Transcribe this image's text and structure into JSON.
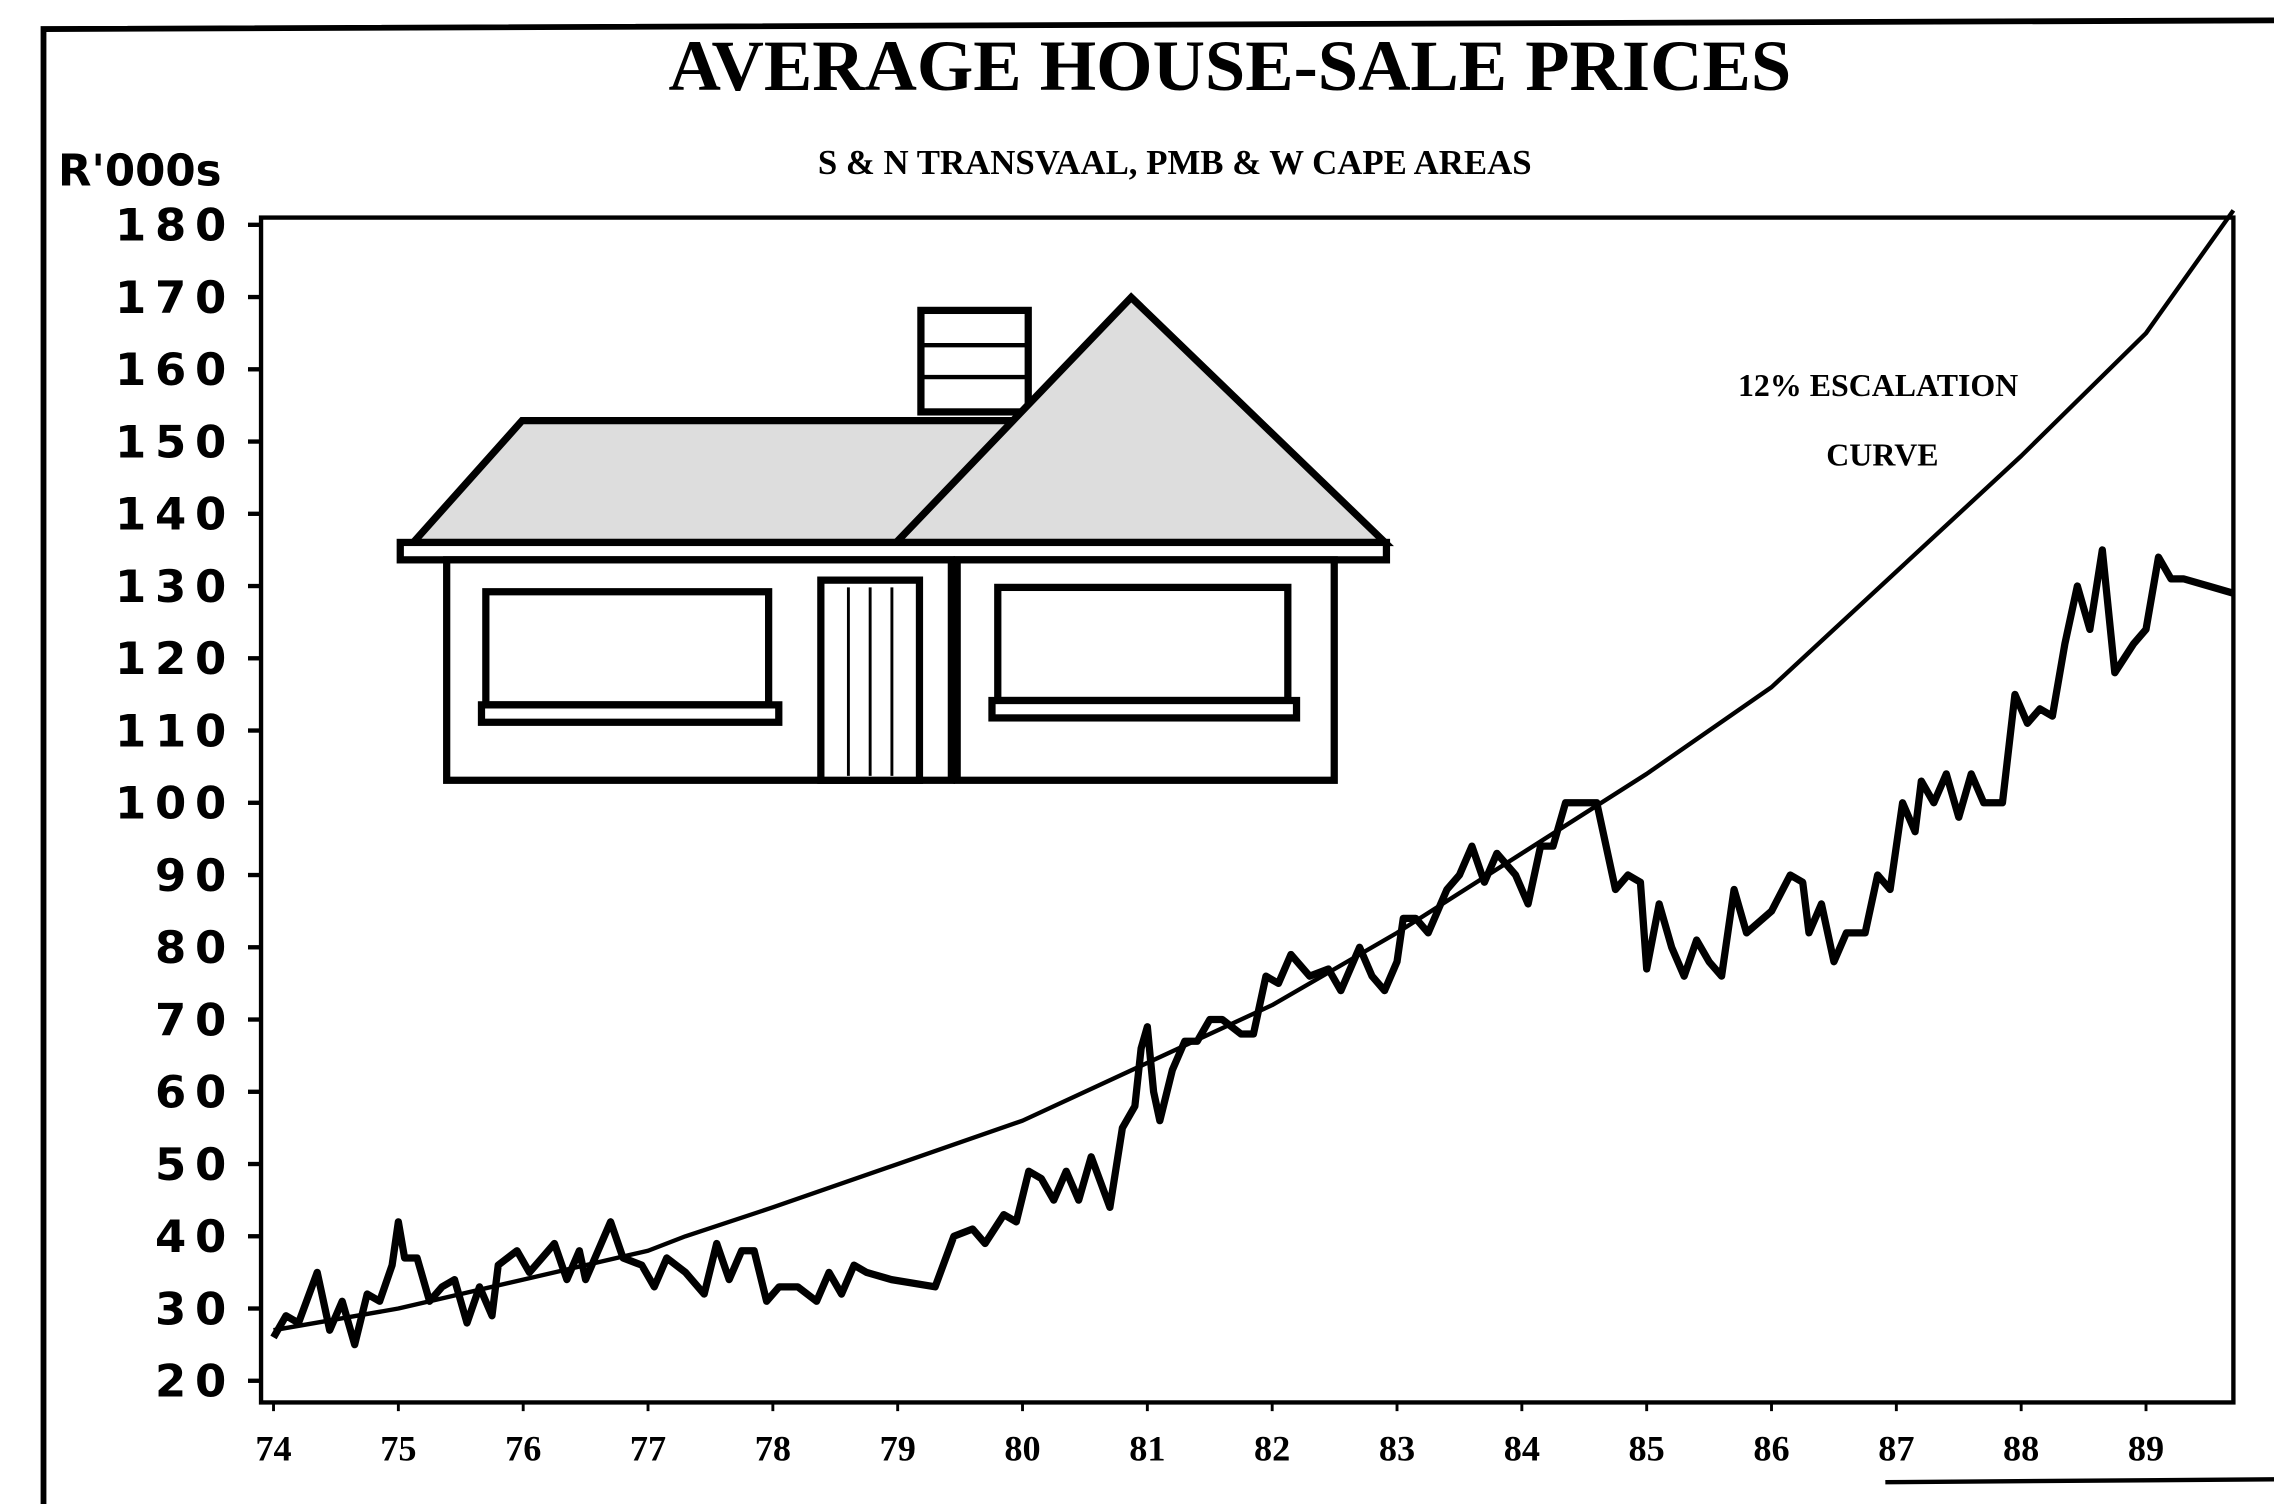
{
  "chart_data": {
    "type": "line",
    "title": "AVERAGE HOUSE-SALE PRICES",
    "subtitle": "S & N TRANSVAAL, PMB & W CAPE AREAS",
    "y_label": "R'000s",
    "annotation_lines": [
      "12% ESCALATION",
      "CURVE"
    ],
    "xlim": [
      73.9,
      89.7
    ],
    "xticks": [
      74,
      75,
      76,
      77,
      78,
      79,
      80,
      81,
      82,
      83,
      84,
      85,
      86,
      87,
      88,
      89
    ],
    "ylim": [
      17,
      181
    ],
    "yticks": [
      20,
      30,
      40,
      50,
      60,
      70,
      80,
      90,
      100,
      110,
      120,
      130,
      140,
      150,
      160,
      170,
      180
    ],
    "series": [
      {
        "color": "#000000",
        "x": [
          74.0,
          74.1,
          74.2,
          74.35,
          74.45,
          74.55,
          74.65,
          74.75,
          74.85,
          74.95,
          75.0,
          75.05,
          75.15,
          75.25,
          75.35,
          75.45,
          75.55,
          75.65,
          75.75,
          75.8,
          75.95,
          76.05,
          76.15,
          76.25,
          76.35,
          76.45,
          76.5,
          76.6,
          76.7,
          76.8,
          76.95,
          77.05,
          77.15,
          77.3,
          77.45,
          77.55,
          77.65,
          77.75,
          77.85,
          77.95,
          78.05,
          78.2,
          78.35,
          78.45,
          78.55,
          78.65,
          78.75,
          78.95,
          79.3,
          79.45,
          79.6,
          79.7,
          79.85,
          79.95,
          80.05,
          80.15,
          80.25,
          80.35,
          80.45,
          80.55,
          80.7,
          80.8,
          80.9,
          80.95,
          81.0,
          81.05,
          81.1,
          81.2,
          81.3,
          81.4,
          81.5,
          81.6,
          81.75,
          81.85,
          81.95,
          82.05,
          82.15,
          82.3,
          82.45,
          82.55,
          82.7,
          82.8,
          82.9,
          83.0,
          83.05,
          83.15,
          83.25,
          83.4,
          83.5,
          83.6,
          83.7,
          83.8,
          83.95,
          84.05,
          84.15,
          84.25,
          84.35,
          84.5,
          84.6,
          84.75,
          84.85,
          84.95,
          85.0,
          85.1,
          85.2,
          85.3,
          85.4,
          85.5,
          85.6,
          85.7,
          85.8,
          86.0,
          86.15,
          86.25,
          86.3,
          86.4,
          86.5,
          86.6,
          86.75,
          86.85,
          86.95,
          87.05,
          87.15,
          87.2,
          87.3,
          87.4,
          87.5,
          87.6,
          87.7,
          87.85,
          87.95,
          88.05,
          88.15,
          88.25,
          88.35,
          88.45,
          88.55,
          88.65,
          88.75,
          88.9,
          89.0,
          89.1,
          89.2,
          89.3,
          89.5,
          89.7
        ],
        "values": [
          26,
          29,
          28,
          35,
          27,
          31,
          25,
          32,
          31,
          36,
          42,
          37,
          37,
          31,
          33,
          34,
          28,
          33,
          29,
          36,
          38,
          35,
          37,
          39,
          34,
          38,
          34,
          38,
          42,
          37,
          36,
          33,
          37,
          35,
          32,
          39,
          34,
          38,
          38,
          31,
          33,
          33,
          31,
          35,
          32,
          36,
          35,
          34,
          33,
          40,
          41,
          39,
          43,
          42,
          49,
          48,
          45,
          49,
          45,
          51,
          44,
          55,
          58,
          66,
          69,
          60,
          56,
          63,
          67,
          67,
          70,
          70,
          68,
          68,
          76,
          75,
          79,
          76,
          77,
          74,
          80,
          76,
          74,
          78,
          84,
          84,
          82,
          88,
          90,
          94,
          89,
          93,
          90,
          86,
          94,
          94,
          100,
          100,
          100,
          88,
          90,
          89,
          77,
          86,
          80,
          76,
          81,
          78,
          76,
          88,
          82,
          85,
          90,
          89,
          82,
          86,
          78,
          82,
          82,
          90,
          88,
          100,
          96,
          103,
          100,
          104,
          98,
          104,
          100,
          100,
          115,
          111,
          113,
          112,
          122,
          130,
          124,
          135,
          118,
          122,
          124,
          134,
          131,
          131,
          130,
          129
        ]
      },
      {
        "color": "#000000",
        "x": [
          74,
          75,
          76,
          77,
          77.3,
          78,
          79,
          80,
          81,
          82,
          83,
          84,
          85,
          86,
          87,
          88,
          89,
          89.7
        ],
        "values": [
          27,
          30,
          34,
          38,
          40,
          44,
          50,
          56,
          64,
          72,
          82,
          93,
          104,
          116,
          132,
          148,
          165,
          182
        ]
      }
    ]
  }
}
